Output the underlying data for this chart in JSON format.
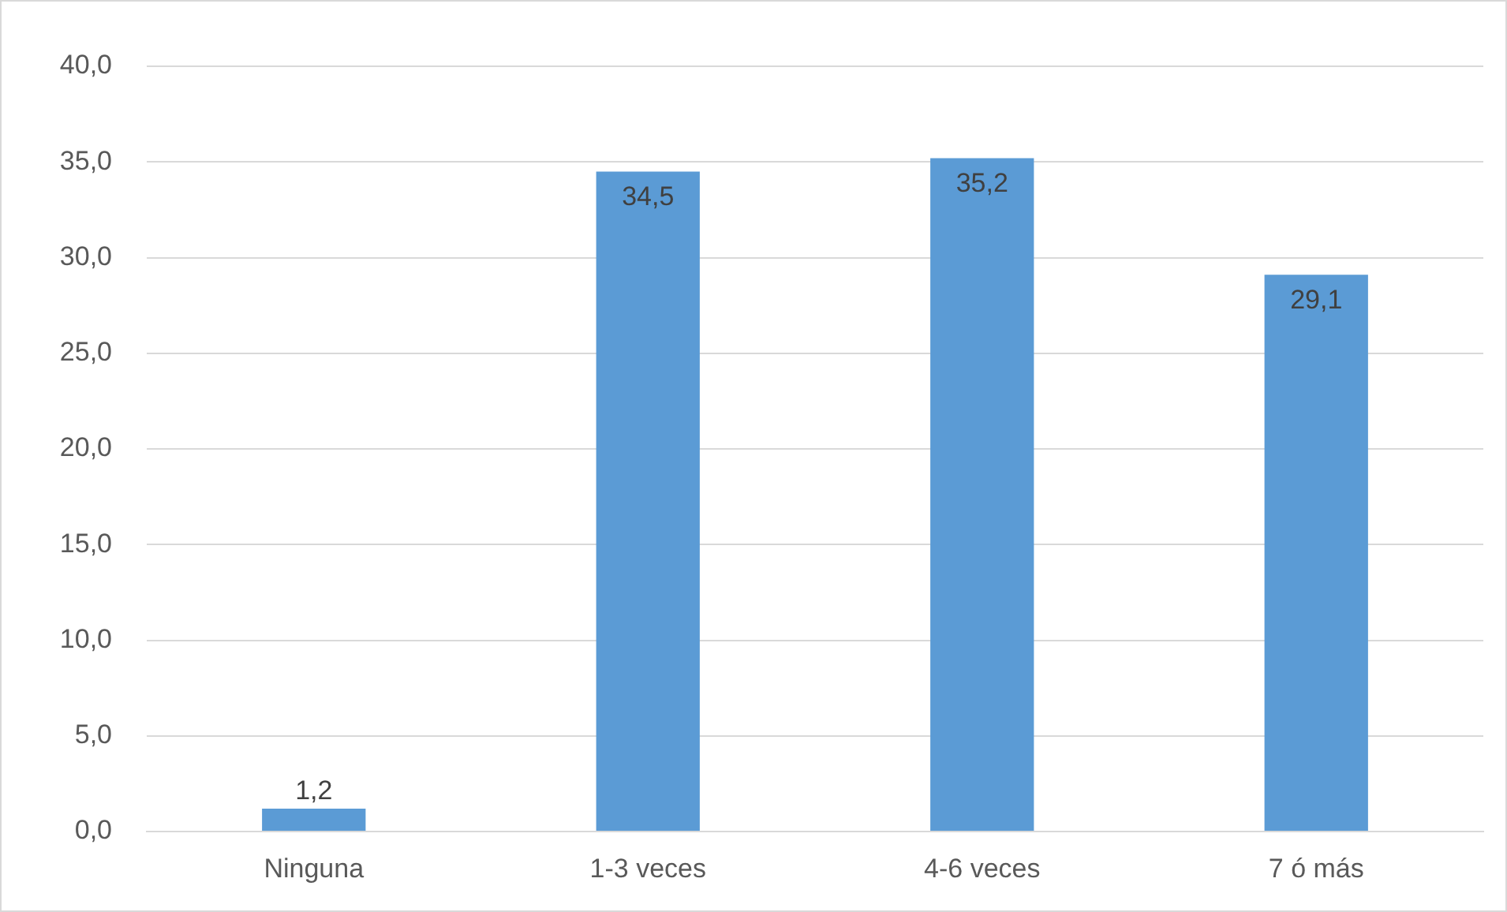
{
  "chart_data": {
    "type": "bar",
    "categories": [
      "Ninguna",
      "1-3 veces",
      "4-6 veces",
      "7 ó más"
    ],
    "values": [
      1.2,
      34.5,
      35.2,
      29.1
    ],
    "color": "#5b9bd5",
    "value_labels": [
      "1,2",
      "34,5",
      "35,2",
      "29,1"
    ],
    "ylim": [
      0,
      40
    ],
    "yticks": [
      {
        "value": 0,
        "label": "0,0"
      },
      {
        "value": 5,
        "label": "5,0"
      },
      {
        "value": 10,
        "label": "10,0"
      },
      {
        "value": 15,
        "label": "15,0"
      },
      {
        "value": 20,
        "label": "20,0"
      },
      {
        "value": 25,
        "label": "25,0"
      },
      {
        "value": 30,
        "label": "30,0"
      },
      {
        "value": 35,
        "label": "35,0"
      },
      {
        "value": 40,
        "label": "40,0"
      }
    ],
    "grid": "y",
    "legend": false
  }
}
